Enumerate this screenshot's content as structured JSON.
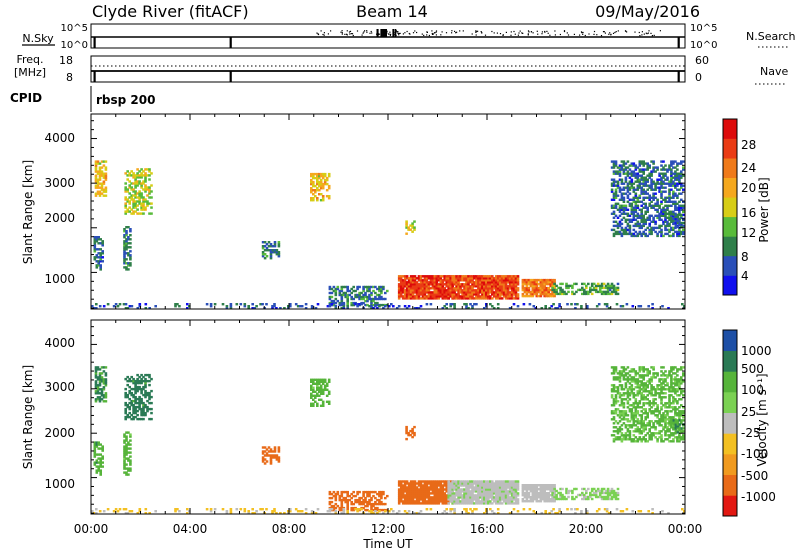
{
  "header": {
    "station": "Clyde River (fitACF)",
    "beam": "Beam 14",
    "date": "09/May/2016"
  },
  "status_panels": {
    "nsky_label": "N.Sky",
    "nsky_ticks": [
      "10^5",
      "10^0"
    ],
    "nsearch_label": "N.Search",
    "nsearch_ticks": [
      "10^5",
      "10^0"
    ],
    "freq_label": "Freq.",
    "freq_unit": "[MHz]",
    "freq_ticks": [
      "18",
      "8"
    ],
    "nave_label": "Nave",
    "nave_ticks": [
      "60",
      "0"
    ],
    "cpid_label": "CPID",
    "cpid_value": "rbsp 200"
  },
  "axes": {
    "ylabel": "Slant Range [km]",
    "xlabel": "Time UT",
    "y_ticks": [
      "1000",
      "2000",
      "3000",
      "4000"
    ],
    "x_ticks": [
      "00:00",
      "04:00",
      "08:00",
      "12:00",
      "16:00",
      "20:00",
      "00:00"
    ]
  },
  "colorbars": {
    "power": {
      "label": "Power [dB]",
      "ticks": [
        "4",
        "8",
        "12",
        "16",
        "20",
        "24",
        "28"
      ],
      "colors": [
        "#1010ee",
        "#2a4fb8",
        "#2f7f4a",
        "#58bb3a",
        "#d7cd16",
        "#f5a81e",
        "#ef7a1a",
        "#ea3b14",
        "#dd0a0a"
      ]
    },
    "velocity": {
      "label": "Velocity [m s⁻¹]",
      "ticks": [
        "1000",
        "500",
        "100",
        "25",
        "-25",
        "-100",
        "-500",
        "-1000"
      ],
      "colors": [
        "#1d4fa6",
        "#2a7a55",
        "#56b43a",
        "#7bd153",
        "#bdbdbd",
        "#f3c022",
        "#f09a1f",
        "#e86a18",
        "#e21812"
      ]
    }
  },
  "chart_data": {
    "type": "heatmap",
    "x_axis": {
      "range": [
        0,
        24
      ],
      "unit": "hours UT",
      "major_every": 4,
      "minor_every": 1
    },
    "y_axis": {
      "range": [
        180,
        4550
      ],
      "unit": "km",
      "major_every": 1000,
      "minor_every": 200
    },
    "power_colorscale": [
      0,
      32
    ],
    "velocity_colorscale": [
      -1000,
      1000
    ],
    "echo_regions": [
      {
        "t": [
          0.15,
          0.6
        ],
        "r": [
          2700,
          3500
        ],
        "power": 18,
        "velocity": 600
      },
      {
        "t": [
          1.35,
          2.45
        ],
        "r": [
          2300,
          3300
        ],
        "power": 15,
        "velocity": 700
      },
      {
        "t": [
          0.1,
          0.5
        ],
        "r": [
          1050,
          1800
        ],
        "power": 7,
        "velocity": 400
      },
      {
        "t": [
          1.3,
          1.6
        ],
        "r": [
          1050,
          2000
        ],
        "power": 8,
        "velocity": 350
      },
      {
        "t": [
          6.9,
          7.6
        ],
        "r": [
          1300,
          1700
        ],
        "power": 8,
        "velocity": -200
      },
      {
        "t": [
          8.85,
          9.6
        ],
        "r": [
          2600,
          3200
        ],
        "power": 18,
        "velocity": 350
      },
      {
        "t": [
          12.7,
          13.1
        ],
        "r": [
          1850,
          2150
        ],
        "power": 16,
        "velocity": -250
      },
      {
        "t": [
          12.4,
          14.6
        ],
        "r": [
          400,
          900
        ],
        "power": 27,
        "velocity": -300
      },
      {
        "t": [
          14.4,
          17.2
        ],
        "r": [
          400,
          900
        ],
        "power": 26,
        "velocity": 80
      },
      {
        "t": [
          17.4,
          18.7
        ],
        "r": [
          450,
          850
        ],
        "power": 23,
        "velocity": 70
      },
      {
        "t": [
          18.6,
          21.3
        ],
        "r": [
          500,
          750
        ],
        "power": 11,
        "velocity": 120
      },
      {
        "t": [
          9.6,
          12.0
        ],
        "r": [
          250,
          700
        ],
        "power": 8,
        "velocity": -150
      },
      {
        "t": [
          0.0,
          24.0
        ],
        "r": [
          180,
          300
        ],
        "power": 6,
        "velocity": 20
      },
      {
        "t": [
          21.0,
          23.9
        ],
        "r": [
          1800,
          3500
        ],
        "power": 7,
        "velocity": 300
      },
      {
        "t": [
          23.5,
          24.0
        ],
        "r": [
          2000,
          2300
        ],
        "power": 6,
        "velocity": 500
      }
    ]
  }
}
